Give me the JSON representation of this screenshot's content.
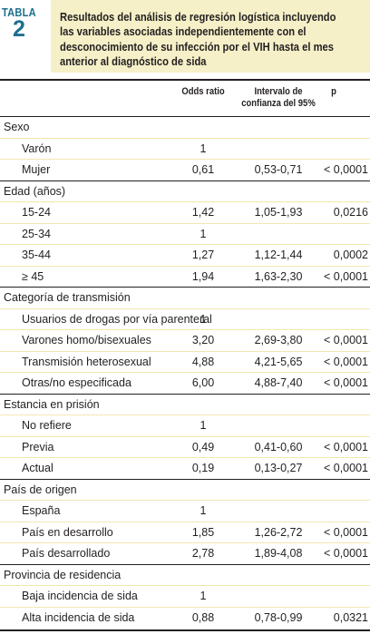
{
  "table_label": {
    "word": "TABLA",
    "number": "2"
  },
  "title": "Resultados del análisis de regresión logística incluyendo las variables asociadas independientemente con el desconocimiento de su infección por el VIH hasta el mes anterior al diagnóstico de sida",
  "headers": {
    "odds_ratio": "Odds ratio",
    "ci": "Intervalo de confianza del 95%",
    "p": "p"
  },
  "rows": [
    {
      "kind": "cat",
      "label": "Sexo",
      "or": "",
      "ci": "",
      "p": ""
    },
    {
      "kind": "sub",
      "label": "Varón",
      "or": "1",
      "ci": "",
      "p": ""
    },
    {
      "kind": "sub",
      "label": "Mujer",
      "or": "0,61",
      "ci": "0,53-0,71",
      "p": "< 0,0001"
    },
    {
      "kind": "cat",
      "label": "Edad (años)",
      "or": "",
      "ci": "",
      "p": ""
    },
    {
      "kind": "sub",
      "label": "15-24",
      "or": "1,42",
      "ci": "1,05-1,93",
      "p": "0,0216"
    },
    {
      "kind": "sub",
      "label": "25-34",
      "or": "1",
      "ci": "",
      "p": ""
    },
    {
      "kind": "sub",
      "label": "35-44",
      "or": "1,27",
      "ci": "1,12-1,44",
      "p": "0,0002"
    },
    {
      "kind": "sub",
      "label": "≥ 45",
      "or": "1,94",
      "ci": "1,63-2,30",
      "p": "< 0,0001"
    },
    {
      "kind": "cat",
      "label": "Categoría de transmisión",
      "or": "",
      "ci": "",
      "p": ""
    },
    {
      "kind": "sub",
      "label": "Usuarios de drogas por vía parenteral",
      "or": "1",
      "ci": "",
      "p": ""
    },
    {
      "kind": "sub",
      "label": "Varones homo/bisexuales",
      "or": "3,20",
      "ci": "2,69-3,80",
      "p": "< 0,0001"
    },
    {
      "kind": "sub",
      "label": "Transmisión heterosexual",
      "or": "4,88",
      "ci": "4,21-5,65",
      "p": "< 0,0001"
    },
    {
      "kind": "sub",
      "label": "Otras/no especificada",
      "or": "6,00",
      "ci": "4,88-7,40",
      "p": "< 0,0001"
    },
    {
      "kind": "cat",
      "label": "Estancia en prisión",
      "or": "",
      "ci": "",
      "p": ""
    },
    {
      "kind": "sub",
      "label": "No refiere",
      "or": "1",
      "ci": "",
      "p": ""
    },
    {
      "kind": "sub",
      "label": "Previa",
      "or": "0,49",
      "ci": "0,41-0,60",
      "p": "< 0,0001"
    },
    {
      "kind": "sub",
      "label": "Actual",
      "or": "0,19",
      "ci": "0,13-0,27",
      "p": "< 0,0001"
    },
    {
      "kind": "cat",
      "label": "País de origen",
      "or": "",
      "ci": "",
      "p": ""
    },
    {
      "kind": "sub",
      "label": "España",
      "or": "1",
      "ci": "",
      "p": ""
    },
    {
      "kind": "sub",
      "label": "País en desarrollo",
      "or": "1,85",
      "ci": "1,26-2,72",
      "p": "< 0,0001"
    },
    {
      "kind": "sub",
      "label": "País desarrollado",
      "or": "2,78",
      "ci": "1,89-4,08",
      "p": "< 0,0001"
    },
    {
      "kind": "cat",
      "label": "Provincia de residencia",
      "or": "",
      "ci": "",
      "p": ""
    },
    {
      "kind": "sub",
      "label": "Baja incidencia de sida",
      "or": "1",
      "ci": "",
      "p": ""
    },
    {
      "kind": "sub",
      "label": "Alta incidencia de sida",
      "or": "0,88",
      "ci": "0,78-0,99",
      "p": "0,0321"
    }
  ]
}
